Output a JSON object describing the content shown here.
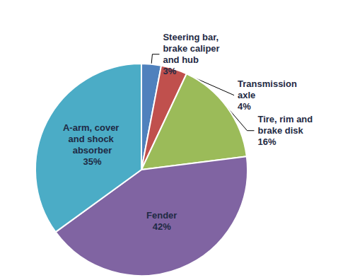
{
  "chart_data": {
    "type": "pie",
    "categories": [
      "Steering bar, brake caliper and hub",
      "Transmission axle",
      "Tire, rim and brake disk",
      "Fender",
      "A-arm, cover and shock absorber"
    ],
    "values": [
      3,
      4,
      16,
      42,
      35
    ],
    "value_labels": [
      "3%",
      "4%",
      "16%",
      "42%",
      "35%"
    ],
    "colors": [
      "#4f81bd",
      "#c0504d",
      "#9bbb59",
      "#8064a2",
      "#4bacc6"
    ],
    "data_labels": true
  }
}
